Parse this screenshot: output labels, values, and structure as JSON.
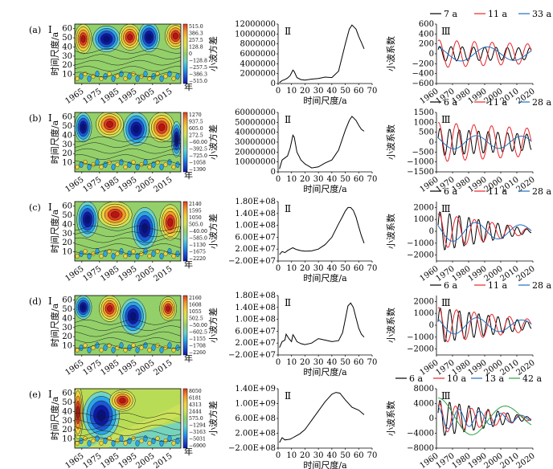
{
  "chart_data": [
    {
      "row": "(a)",
      "type": "heatmap",
      "panel": "I",
      "ylabel": "时间尺度/a",
      "year_suffix": "年",
      "x_ticks": [
        "1965",
        "1975",
        "1985",
        "1995",
        "2005",
        "2015"
      ],
      "y_ticks": [
        "10",
        "20",
        "30",
        "40",
        "50",
        "60"
      ],
      "colorbar": [
        "515.0",
        "386.3",
        "257.5",
        "128.8",
        "0",
        "−128.8",
        "−257.5",
        "−386.3",
        "−515.0"
      ]
    },
    {
      "row": "(a)",
      "type": "line",
      "panel": "Ⅱ",
      "ylabel": "小波方差",
      "xlabel": "时间尺度/a",
      "x_ticks": [
        "0",
        "10",
        "20",
        "30",
        "40",
        "50",
        "60",
        "70"
      ],
      "y_ticks": [
        "12000000",
        "10000000",
        "8000000",
        "6000000",
        "4000000",
        "2000000",
        "0"
      ],
      "xlim": [
        0,
        70
      ],
      "ylim": [
        0,
        12000000
      ],
      "x": [
        1,
        3,
        5,
        7,
        9,
        11,
        12,
        14,
        17,
        20,
        25,
        30,
        35,
        40,
        45,
        50,
        53,
        55,
        58,
        60,
        62,
        64
      ],
      "y": [
        200000,
        600000,
        800000,
        1100000,
        1600000,
        2700000,
        2400000,
        1200000,
        800000,
        700000,
        900000,
        1000000,
        1300000,
        1200000,
        2500000,
        8000000,
        11000000,
        11800000,
        11000000,
        9500000,
        8300000,
        7000000
      ]
    },
    {
      "row": "(a)",
      "type": "line",
      "panel": "Ⅲ",
      "ylabel": "小波系数",
      "x_ticks": [
        "1960",
        "1970",
        "1980",
        "1990",
        "2000",
        "2010",
        "2020"
      ],
      "y_ticks": [
        "600",
        "400",
        "200",
        "0",
        "−200",
        "−400",
        "−600"
      ],
      "xlim": [
        1960,
        2020
      ],
      "ylim": [
        -600,
        600
      ],
      "legend": [
        "7 a",
        "11 a",
        "33 a"
      ],
      "series": [
        {
          "name": "7 a",
          "color": "#000000",
          "period": 7,
          "amp": [
            150,
            120
          ],
          "phase": 0.6
        },
        {
          "name": "11 a",
          "color": "#e8262b",
          "period": 11,
          "amp": [
            280,
            200
          ],
          "phase": 1.2
        },
        {
          "name": "33 a",
          "color": "#1f6fc0",
          "period": 33,
          "amp": [
            150,
            130
          ],
          "phase": 2.0
        }
      ]
    },
    {
      "row": "(b)",
      "type": "heatmap",
      "panel": "I",
      "ylabel": "时间尺度/a",
      "year_suffix": "年",
      "x_ticks": [
        "1965",
        "1975",
        "1985",
        "1995",
        "2005",
        "2015"
      ],
      "y_ticks": [
        "10",
        "20",
        "30",
        "40",
        "50",
        "60"
      ],
      "colorbar": [
        "1270",
        "937.5",
        "605.0",
        "272.5",
        "−60.00",
        "−392.5",
        "−725.0",
        "−1058",
        "−1390"
      ]
    },
    {
      "row": "(b)",
      "type": "line",
      "panel": "Ⅱ",
      "ylabel": "小波方差",
      "xlabel": "时间尺度/a",
      "x_ticks": [
        "0",
        "10",
        "20",
        "30",
        "40",
        "50",
        "60",
        "70"
      ],
      "y_ticks": [
        "60000000",
        "50000000",
        "40000000",
        "30000000",
        "20000000",
        "10000000",
        "0"
      ],
      "xlim": [
        0,
        70
      ],
      "ylim": [
        0,
        60000000
      ],
      "x": [
        1,
        3,
        5,
        7,
        9,
        11,
        12,
        14,
        17,
        20,
        25,
        30,
        35,
        40,
        45,
        50,
        53,
        55,
        58,
        60,
        62,
        64
      ],
      "y": [
        3000000,
        12000000,
        14000000,
        16000000,
        24000000,
        37000000,
        35000000,
        20000000,
        12000000,
        8000000,
        4000000,
        5000000,
        9000000,
        12000000,
        22000000,
        42000000,
        52000000,
        56000000,
        52000000,
        47000000,
        43000000,
        41000000
      ]
    },
    {
      "row": "(b)",
      "type": "line",
      "panel": "Ⅲ",
      "ylabel": "小波系数",
      "x_ticks": [
        "1960",
        "1970",
        "1980",
        "1990",
        "2000",
        "2010",
        "2020"
      ],
      "y_ticks": [
        "1500",
        "1000",
        "500",
        "0",
        "−500",
        "−1000",
        "−1500"
      ],
      "xlim": [
        1960,
        2020
      ],
      "ylim": [
        -1500,
        1500
      ],
      "legend": [
        "6 a",
        "11 a",
        "28 a"
      ],
      "series": [
        {
          "name": "6 a",
          "color": "#000000",
          "period": 6,
          "amp": [
            700,
            400
          ],
          "phase": 0.3
        },
        {
          "name": "11 a",
          "color": "#e8262b",
          "period": 11,
          "amp": [
            1000,
            700
          ],
          "phase": 1.4
        },
        {
          "name": "28 a",
          "color": "#1f6fc0",
          "period": 28,
          "amp": [
            350,
            300
          ],
          "phase": 2.5
        }
      ]
    },
    {
      "row": "(c)",
      "type": "heatmap",
      "panel": "I",
      "ylabel": "时间尺度/a",
      "year_suffix": "年",
      "x_ticks": [
        "1965",
        "1975",
        "1985",
        "1995",
        "2005",
        "2015"
      ],
      "y_ticks": [
        "10",
        "20",
        "30",
        "40",
        "50",
        "60"
      ],
      "colorbar": [
        "2140",
        "1595",
        "1050",
        "505.0",
        "−40.00",
        "−585.0",
        "−1130",
        "−1675",
        "−2220"
      ]
    },
    {
      "row": "(c)",
      "type": "line",
      "panel": "Ⅱ",
      "ylabel": "小波方差",
      "xlabel": "时间尺度/a",
      "x_ticks": [
        "0",
        "10",
        "20",
        "30",
        "40",
        "50",
        "60",
        "70"
      ],
      "y_ticks": [
        "1.80E+08",
        "1.40E+08",
        "1.00E+08",
        "6.00E+07",
        "2.00E+07",
        "−2.00E+07"
      ],
      "xlim": [
        0,
        70
      ],
      "ylim": [
        -20000000,
        180000000
      ],
      "x": [
        1,
        3,
        5,
        7,
        9,
        11,
        12,
        14,
        17,
        20,
        25,
        30,
        35,
        40,
        45,
        48,
        50,
        52,
        54,
        56,
        58,
        60,
        62,
        64
      ],
      "y": [
        2000000,
        12000000,
        8000000,
        15000000,
        20000000,
        25000000,
        22000000,
        18000000,
        15000000,
        13000000,
        14000000,
        20000000,
        35000000,
        60000000,
        105000000,
        130000000,
        148000000,
        160000000,
        160000000,
        150000000,
        128000000,
        95000000,
        65000000,
        40000000
      ]
    },
    {
      "row": "(c)",
      "type": "line",
      "panel": "Ⅲ",
      "ylabel": "小波系数",
      "x_ticks": [
        "1960",
        "1970",
        "1980",
        "1990",
        "2000",
        "2010",
        "2020"
      ],
      "y_ticks": [
        "2000",
        "1000",
        "0",
        "−1000",
        "−2000"
      ],
      "xlim": [
        1960,
        2020
      ],
      "ylim": [
        -2500,
        2500
      ],
      "legend": [
        "6 a",
        "11 a",
        "28 a"
      ],
      "series": [
        {
          "name": "6 a",
          "color": "#000000",
          "period": 6,
          "amp": [
            1700,
            120
          ],
          "phase": 0.3
        },
        {
          "name": "11 a",
          "color": "#e8262b",
          "period": 11,
          "amp": [
            1500,
            200
          ],
          "phase": 1.2
        },
        {
          "name": "28 a",
          "color": "#1f6fc0",
          "period": 28,
          "amp": [
            900,
            500
          ],
          "phase": 2.6
        }
      ]
    },
    {
      "row": "(d)",
      "type": "heatmap",
      "panel": "I",
      "ylabel": "时间尺度/a",
      "year_suffix": "年",
      "x_ticks": [
        "1965",
        "1975",
        "1985",
        "1995",
        "2005",
        "2015"
      ],
      "y_ticks": [
        "10",
        "20",
        "30",
        "40",
        "50",
        "60"
      ],
      "colorbar": [
        "2160",
        "1608",
        "1055",
        "502.5",
        "−50.00",
        "−602.5",
        "−1155",
        "−1708",
        "−2260"
      ]
    },
    {
      "row": "(d)",
      "type": "line",
      "panel": "Ⅱ",
      "ylabel": "小波方差",
      "xlabel": "时间尺度/a",
      "x_ticks": [
        "0",
        "10",
        "20",
        "30",
        "40",
        "50",
        "60",
        "70"
      ],
      "y_ticks": [
        "1.80E+08",
        "1.40E+08",
        "1.00E+08",
        "6.00E+07",
        "2.00E+07",
        "−2.00E+07"
      ],
      "xlim": [
        0,
        70
      ],
      "ylim": [
        -20000000,
        180000000
      ],
      "x": [
        1,
        3,
        5,
        6,
        8,
        10,
        11,
        12,
        14,
        17,
        20,
        25,
        30,
        35,
        40,
        45,
        48,
        50,
        52,
        54,
        56,
        58,
        60,
        62,
        64
      ],
      "y": [
        5000000,
        25000000,
        30000000,
        50000000,
        35000000,
        25000000,
        48000000,
        42000000,
        25000000,
        18000000,
        15000000,
        20000000,
        35000000,
        30000000,
        25000000,
        28000000,
        55000000,
        100000000,
        145000000,
        155000000,
        140000000,
        105000000,
        70000000,
        50000000,
        40000000
      ]
    },
    {
      "row": "(d)",
      "type": "line",
      "panel": "Ⅲ",
      "ylabel": "小波系数",
      "x_ticks": [
        "1960",
        "1970",
        "1980",
        "1990",
        "2000",
        "2010",
        "2020"
      ],
      "y_ticks": [
        "2000",
        "1000",
        "0",
        "−1000",
        "−2000"
      ],
      "xlim": [
        1960,
        2020
      ],
      "ylim": [
        -2500,
        2500
      ],
      "legend": [
        "6 a",
        "11 a",
        "28 a"
      ],
      "series": [
        {
          "name": "6 a",
          "color": "#000000",
          "period": 6,
          "amp": [
            1500,
            300
          ],
          "phase": 0.2
        },
        {
          "name": "11 a",
          "color": "#e8262b",
          "period": 11,
          "amp": [
            1500,
            500
          ],
          "phase": 1.3
        },
        {
          "name": "28 a",
          "color": "#1f6fc0",
          "period": 28,
          "amp": [
            800,
            400
          ],
          "phase": 2.4
        }
      ]
    },
    {
      "row": "(e)",
      "type": "heatmap",
      "panel": "I",
      "ylabel": "时间尺度/a",
      "year_suffix": "年",
      "x_ticks": [
        "1965",
        "1975",
        "1985",
        "1995",
        "2005",
        "2015"
      ],
      "y_ticks": [
        "10",
        "20",
        "30",
        "40",
        "50",
        "60"
      ],
      "colorbar": [
        "8050",
        "6181",
        "4313",
        "2444",
        "575.0",
        "−1294",
        "−3163",
        "−5031",
        "−6900"
      ]
    },
    {
      "row": "(e)",
      "type": "line",
      "panel": "Ⅱ",
      "ylabel": "小波方差",
      "xlabel": "时间尺度/a",
      "x_ticks": [
        "0",
        "10",
        "20",
        "30",
        "40",
        "50",
        "60",
        "70"
      ],
      "y_ticks": [
        "1.40E+09",
        "1.00E+09",
        "6.00E+08",
        "2.00E+08",
        "−2.00E+08"
      ],
      "xlim": [
        0,
        70
      ],
      "ylim": [
        -200000000,
        1400000000
      ],
      "x": [
        1,
        3,
        5,
        7,
        9,
        11,
        13,
        16,
        20,
        25,
        30,
        35,
        40,
        43,
        46,
        50,
        55,
        60,
        64
      ],
      "y": [
        -50000000,
        80000000,
        20000000,
        30000000,
        40000000,
        80000000,
        120000000,
        180000000,
        300000000,
        550000000,
        800000000,
        1050000000,
        1250000000,
        1300000000,
        1280000000,
        1100000000,
        900000000,
        820000000,
        700000000
      ]
    },
    {
      "row": "(e)",
      "type": "line",
      "panel": "Ⅲ",
      "ylabel": "小波系数",
      "x_ticks": [
        "1960",
        "1970",
        "1980",
        "1990",
        "2000",
        "2010",
        "2020"
      ],
      "y_ticks": [
        "8000",
        "4000",
        "0",
        "−4000",
        "−8000"
      ],
      "xlim": [
        1960,
        2020
      ],
      "ylim": [
        -8000,
        8000
      ],
      "legend": [
        "6 a",
        "10 a",
        "13 a",
        "42 a"
      ],
      "series": [
        {
          "name": "6 a",
          "color": "#000000",
          "period": 6,
          "amp": [
            5000,
            300
          ],
          "phase": 0.3
        },
        {
          "name": "10 a",
          "color": "#e8262b",
          "period": 10,
          "amp": [
            4000,
            500
          ],
          "phase": 1.0
        },
        {
          "name": "13 a",
          "color": "#1f6fc0",
          "period": 13,
          "amp": [
            3000,
            600
          ],
          "phase": 1.6
        },
        {
          "name": "42 a",
          "color": "#2ea043",
          "period": 42,
          "amp": [
            5500,
            2500
          ],
          "phase": 1.5
        }
      ]
    }
  ]
}
